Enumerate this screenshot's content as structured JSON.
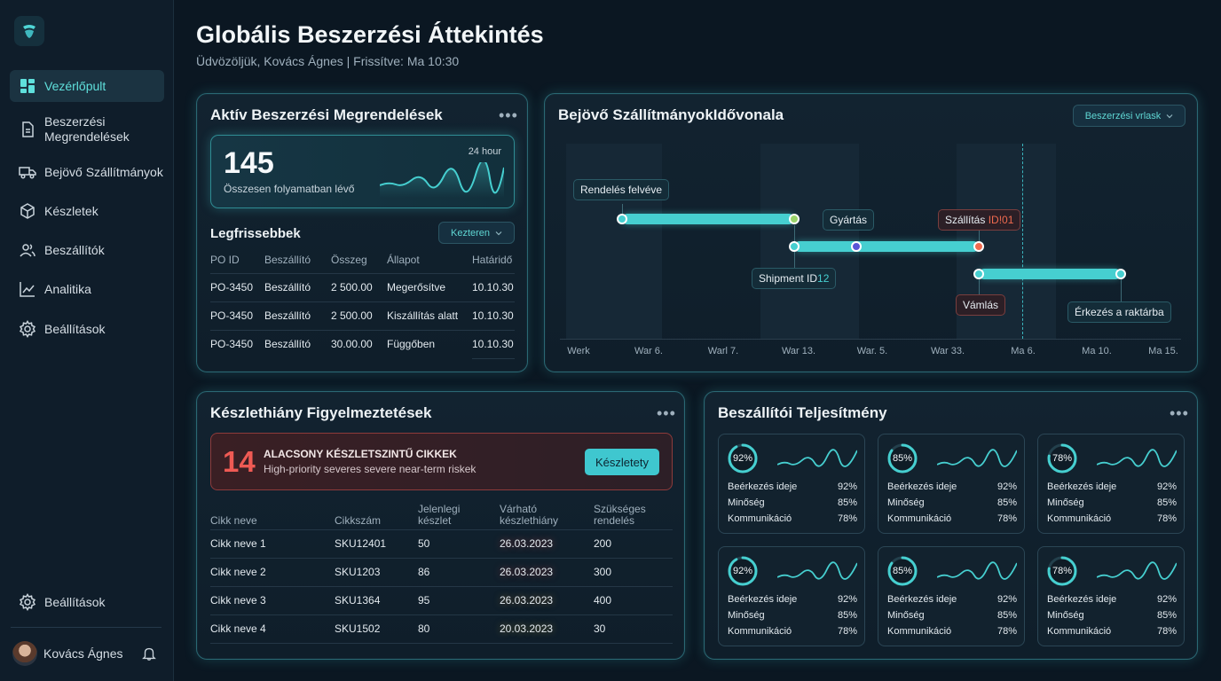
{
  "sidebar": {
    "items": [
      {
        "label": "Vezérlőpult",
        "icon": "dashboard-icon"
      },
      {
        "label": "Beszerzési Megrendelések",
        "icon": "document-icon"
      },
      {
        "label": "Bejövő Szállítmányok",
        "icon": "truck-icon"
      },
      {
        "label": "Készletek",
        "icon": "box-icon"
      },
      {
        "label": "Beszállítók",
        "icon": "users-icon"
      },
      {
        "label": "Analitika",
        "icon": "chart-icon"
      },
      {
        "label": "Beállítások",
        "icon": "gear-icon"
      }
    ],
    "bottom_settings": "Beállítások",
    "user_name": "Kovács Ágnes"
  },
  "header": {
    "title": "Globális Beszerzési Áttekintés",
    "subtitle": "Üdvözöljük, Kovács Ágnes | Frissítve: Ma 10:30"
  },
  "orders": {
    "title": "Aktív Beszerzési Megrendelések",
    "kpi_value": "145",
    "kpi_label": "Összesen folyamatban lévő",
    "kpi_period": "24 hour",
    "recent_title": "Legfrissebbek",
    "filter_label": "Kezteren",
    "columns": [
      "PO ID",
      "Beszállító",
      "Összeg",
      "Állapot",
      "Határidő"
    ],
    "rows": [
      {
        "id": "PO-3450",
        "supplier": "Beszállító",
        "amount": "2 500.00",
        "status": "Megerősítve",
        "status_type": "teal",
        "due": "10.10.30"
      },
      {
        "id": "PO-3450",
        "supplier": "Beszállító",
        "amount": "2 500.00",
        "status": "Kiszállítás alatt",
        "status_type": "blue",
        "due": "10.10.30"
      },
      {
        "id": "PO-3450",
        "supplier": "Beszállító",
        "amount": "30.00.00",
        "status": "Függőben",
        "status_type": "amber",
        "due": "10.10.30"
      }
    ]
  },
  "timeline": {
    "title": "Bejövő SzállítmányokIdővonala",
    "filter_label": "Beszerzési vrlask",
    "ticks": [
      "Werk",
      "War 6.",
      "Warl 7.",
      "War 13.",
      "War. 5.",
      "War 33.",
      "Ma 6.",
      "Ma 10.",
      "Ma 15."
    ],
    "labels": {
      "order": "Rendelés felvéve",
      "production": "Gyártás",
      "shipping_prefix": "Szállítás ",
      "shipping_id": "ID!01",
      "shipment_prefix": "Shipment ID",
      "shipment_id": "12",
      "customs": "Vámlás",
      "arrival": "Érkezés a raktárba"
    }
  },
  "stock": {
    "title": "Készlethiány Figyelmeztetések",
    "alert_count": "14",
    "alert_title": "ALACSONY KÉSZLETSZINTŰ CIKKEK",
    "alert_sub": "High-priority severes severe near-term riskek",
    "alert_button": "Készletety",
    "columns": [
      "Cikk neve",
      "Cikkszám",
      "Jelenlegi készlet",
      "Várható készlethiány",
      "Szükséges rendelés"
    ],
    "rows": [
      {
        "name": "Cikk neve 1",
        "sku": "SKU12401",
        "stock": "50",
        "date": "26.03.2023",
        "severity": "red",
        "order": "200"
      },
      {
        "name": "Cikk neve 2",
        "sku": "SKU1203",
        "stock": "86",
        "date": "26.03.2023",
        "severity": "red",
        "order": "300"
      },
      {
        "name": "Cikk neve 3",
        "sku": "SKU1364",
        "stock": "95",
        "date": "26.03.2023",
        "severity": "orange",
        "order": "400"
      },
      {
        "name": "Cikk neve 4",
        "sku": "SKU1502",
        "stock": "80",
        "date": "20.03.2023",
        "severity": "yellow",
        "order": "30"
      }
    ]
  },
  "suppliers": {
    "title": "Beszállítói Teljesítmény",
    "metric_labels": [
      "Beérkezés ideje",
      "Minőség",
      "Kommunikáció"
    ],
    "tiles": [
      {
        "score": "92%",
        "score_value": 0.92,
        "metrics": [
          "92%",
          "85%",
          "78%"
        ]
      },
      {
        "score": "85%",
        "score_value": 0.85,
        "metrics": [
          "92%",
          "85%",
          "78%"
        ]
      },
      {
        "score": "78%",
        "score_value": 0.78,
        "metrics": [
          "92%",
          "85%",
          "78%"
        ]
      },
      {
        "score": "92%",
        "score_value": 0.92,
        "metrics": [
          "92%",
          "85%",
          "78%"
        ]
      },
      {
        "score": "85%",
        "score_value": 0.85,
        "metrics": [
          "92%",
          "85%",
          "78%"
        ]
      },
      {
        "score": "78%",
        "score_value": 0.78,
        "metrics": [
          "92%",
          "85%",
          "78%"
        ]
      }
    ]
  },
  "colors": {
    "accent": "#46cfd0",
    "danger": "#f0574f",
    "warning": "#f0a53c"
  }
}
